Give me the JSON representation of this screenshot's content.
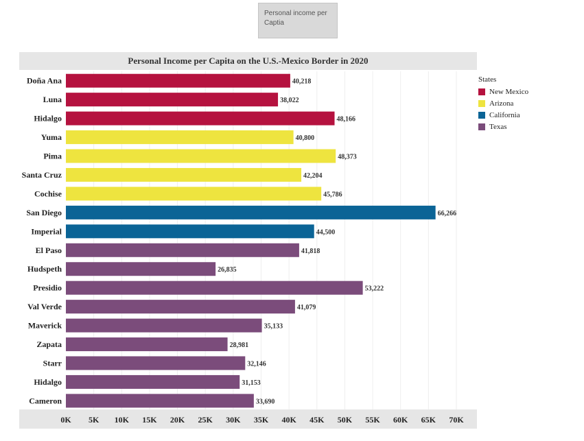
{
  "tooltip": {
    "text": "Personal income per Captia"
  },
  "chart_data": {
    "type": "bar",
    "orientation": "horizontal",
    "title": "Personal Income per Capita on the U.S.-Mexico Border in 2020",
    "xlabel": "",
    "ylabel": "",
    "xlim": [
      0,
      70000
    ],
    "x_ticks": [
      0,
      5000,
      10000,
      15000,
      20000,
      25000,
      30000,
      35000,
      40000,
      45000,
      50000,
      55000,
      60000,
      65000,
      70000
    ],
    "x_tick_labels": [
      "0K",
      "5K",
      "10K",
      "15K",
      "20K",
      "25K",
      "30K",
      "35K",
      "40K",
      "45K",
      "50K",
      "55K",
      "60K",
      "65K",
      "70K"
    ],
    "grid": true,
    "legend_title": "States",
    "legend_position": "right",
    "states": [
      {
        "name": "New Mexico",
        "color": "#b5123f"
      },
      {
        "name": "Arizona",
        "color": "#eee43f"
      },
      {
        "name": "California",
        "color": "#0b6496"
      },
      {
        "name": "Texas",
        "color": "#7b4c7b"
      }
    ],
    "bars": [
      {
        "category": "Doña Ana",
        "state": "New Mexico",
        "value": 40218,
        "label": "40,218"
      },
      {
        "category": "Luna",
        "state": "New Mexico",
        "value": 38022,
        "label": "38,022"
      },
      {
        "category": "Hidalgo",
        "state": "New Mexico",
        "value": 48166,
        "label": "48,166"
      },
      {
        "category": "Yuma",
        "state": "Arizona",
        "value": 40800,
        "label": "40,800"
      },
      {
        "category": "Pima",
        "state": "Arizona",
        "value": 48373,
        "label": "48,373"
      },
      {
        "category": "Santa Cruz",
        "state": "Arizona",
        "value": 42204,
        "label": "42,204"
      },
      {
        "category": "Cochise",
        "state": "Arizona",
        "value": 45786,
        "label": "45,786"
      },
      {
        "category": "San Diego",
        "state": "California",
        "value": 66266,
        "label": "66,266"
      },
      {
        "category": "Imperial",
        "state": "California",
        "value": 44500,
        "label": "44,500"
      },
      {
        "category": "El Paso",
        "state": "Texas",
        "value": 41818,
        "label": "41,818"
      },
      {
        "category": "Hudspeth",
        "state": "Texas",
        "value": 26835,
        "label": "26,835"
      },
      {
        "category": "Presidio",
        "state": "Texas",
        "value": 53222,
        "label": "53,222"
      },
      {
        "category": "Val Verde",
        "state": "Texas",
        "value": 41079,
        "label": "41,079"
      },
      {
        "category": "Maverick",
        "state": "Texas",
        "value": 35133,
        "label": "35,133"
      },
      {
        "category": "Zapata",
        "state": "Texas",
        "value": 28981,
        "label": "28,981"
      },
      {
        "category": "Starr",
        "state": "Texas",
        "value": 32146,
        "label": "32,146"
      },
      {
        "category": "Hidalgo",
        "state": "Texas",
        "value": 31153,
        "label": "31,153"
      },
      {
        "category": "Cameron",
        "state": "Texas",
        "value": 33690,
        "label": "33,690"
      }
    ]
  }
}
